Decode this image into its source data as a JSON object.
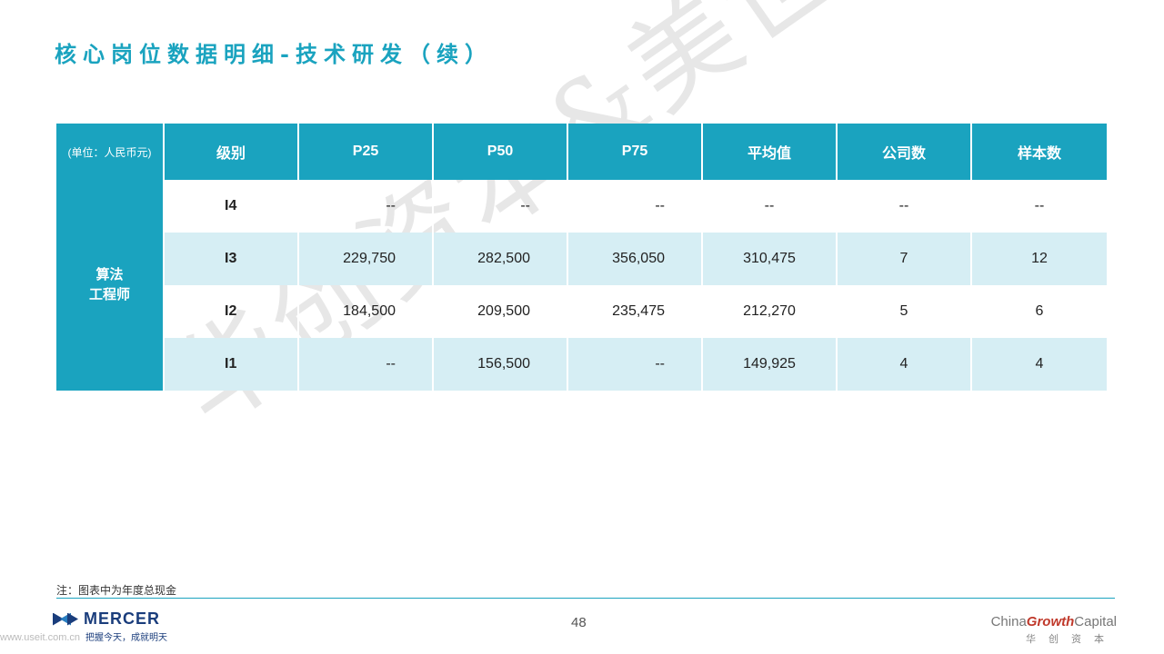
{
  "title": "核心岗位数据明细-技术研发（续）",
  "watermark": "华创资本&美世",
  "table": {
    "headers": [
      "(单位：人民币元)",
      "级别",
      "P25",
      "P50",
      "P75",
      "平均值",
      "公司数",
      "样本数"
    ],
    "group_label_line1": "算法",
    "group_label_line2": "工程师",
    "rows": [
      [
        "I4",
        "--",
        "--",
        "--",
        "--",
        "--",
        "--"
      ],
      [
        "I3",
        "229,750",
        "282,500",
        "356,050",
        "310,475",
        "7",
        "12"
      ],
      [
        "I2",
        "184,500",
        "209,500",
        "235,475",
        "212,270",
        "5",
        "6"
      ],
      [
        "I1",
        "--",
        "156,500",
        "--",
        "149,925",
        "4",
        "4"
      ]
    ]
  },
  "footer": {
    "note": "注：图表中为年度总现金",
    "mercer_name": "MERCER",
    "mercer_slogan": "把握今天，成就明天",
    "page_number": "48",
    "cgc_prefix": "China",
    "cgc_bold": "Growth",
    "cgc_suffix": "Capital",
    "cgc_cn": "华创资本",
    "url": "www.useit.com.cn"
  },
  "colors": {
    "accent": "#1aa3bf",
    "row_alt": "#d6eef4"
  }
}
